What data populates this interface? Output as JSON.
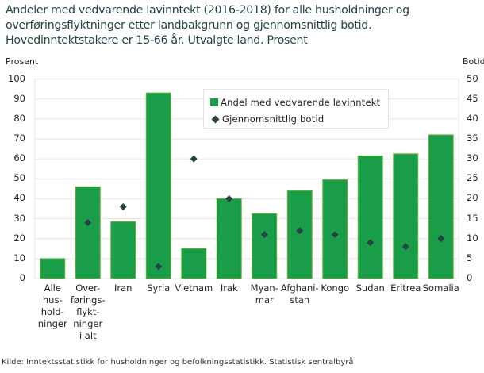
{
  "title": "Andeler med vedvarende lavinntekt (2016-2018) for alle husholdninger og overføringsflyktninger etter landbakgrunn og gjennomsnittlig botid. Hovedinntektstakere er 15-66 år. Utvalgte land. Prosent",
  "left_axis_title": "Prosent",
  "right_axis_title": "Botid",
  "left_ticks": [
    "100",
    "90",
    "80",
    "70",
    "60",
    "50",
    "40",
    "30",
    "20",
    "10",
    "0"
  ],
  "right_ticks": [
    "50",
    "45",
    "40",
    "35",
    "30",
    "25",
    "20",
    "15",
    "10",
    "5",
    "0"
  ],
  "legend": {
    "bar_label": "Andel med vedvarende lavinntekt",
    "marker_label": "Gjennomsnittlig botid"
  },
  "x_labels": [
    "Alle\nhus-\nhold-\nninger",
    "Over-\nførings-\nflykt-\nninger\ni alt",
    "Iran",
    "Syria",
    "Vietnam",
    "Irak",
    "Myan-\nmar",
    "Afghani-\nstan",
    "Kongo",
    "Sudan",
    "Eritrea",
    "Somalia"
  ],
  "source": "Kilde: Inntektsstatistikk for husholdninger og befolkningsstatistikk. Statistisk sentralbyrå",
  "colors": {
    "bar": "#1a9d49",
    "bar_border": "#6cb33f",
    "marker": "#274247",
    "grid": "#e6e6e6"
  },
  "chart_data": {
    "type": "bar",
    "title": "Andeler med vedvarende lavinntekt (2016-2018) for alle husholdninger og overføringsflyktninger etter landbakgrunn og gjennomsnittlig botid. Hovedinntektstakere er 15-66 år. Utvalgte land. Prosent",
    "categories": [
      "Alle husholdninger",
      "Overføringsflyktninger i alt",
      "Iran",
      "Syria",
      "Vietnam",
      "Irak",
      "Myanmar",
      "Afghanistan",
      "Kongo",
      "Sudan",
      "Eritrea",
      "Somalia"
    ],
    "series": [
      {
        "name": "Andel med vedvarende lavinntekt",
        "type": "bar",
        "axis": "left",
        "values": [
          10,
          46,
          28.5,
          93,
          15,
          40,
          32.5,
          44,
          49.5,
          61.5,
          62.5,
          72
        ]
      },
      {
        "name": "Gjennomsnittlig botid",
        "type": "scatter",
        "axis": "right",
        "values": [
          null,
          14,
          18,
          3,
          30,
          20,
          11,
          12,
          11,
          9,
          8,
          10
        ]
      }
    ],
    "xlabel": "",
    "ylabel": "Prosent",
    "ylabel_right": "Botid",
    "ylim": [
      0,
      100
    ],
    "ylim_right": [
      0,
      50
    ],
    "grid": true,
    "legend_position": "top-center inside plot"
  }
}
